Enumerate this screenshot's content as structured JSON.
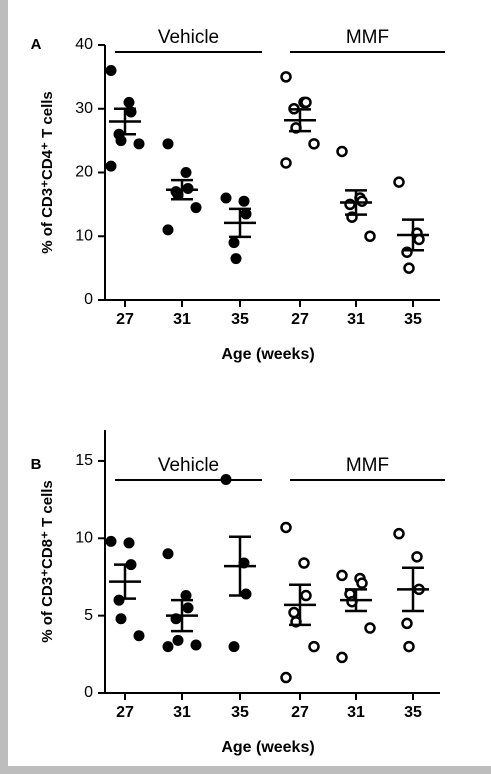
{
  "chart_data": [
    {
      "type": "dotplot",
      "panel": "A",
      "ylabel": "% of CD3⁺CD4⁺ T cells",
      "xlabel": "Age (weeks)",
      "ylim": [
        0,
        40
      ],
      "yticks": [
        0,
        10,
        20,
        30,
        40
      ],
      "series": [
        {
          "name": "Vehicle",
          "marker": "filled",
          "categories": [
            "27",
            "31",
            "35"
          ],
          "points": [
            [
              36,
              31,
              29.5,
              26,
              25,
              24.5,
              21
            ],
            [
              24.5,
              20,
              17.5,
              17,
              16.5,
              14.5,
              11
            ],
            [
              16,
              15.5,
              13.5,
              9,
              6.5
            ]
          ],
          "means": [
            28,
            17.3,
            12.1
          ],
          "sems": [
            2,
            1.5,
            2.2
          ]
        },
        {
          "name": "MMF",
          "marker": "open",
          "categories": [
            "27",
            "31",
            "35"
          ],
          "points": [
            [
              35,
              31,
              31,
              30,
              27,
              24.5,
              21.5
            ],
            [
              23.3,
              16,
              15.5,
              15,
              13,
              10
            ],
            [
              18.5,
              10.5,
              9.5,
              7.5,
              5
            ]
          ],
          "means": [
            28.2,
            15.3,
            10.2
          ],
          "sems": [
            1.7,
            1.9,
            2.4
          ]
        }
      ]
    },
    {
      "type": "dotplot",
      "panel": "B",
      "ylabel": "% of CD3⁺CD8⁺ T cells",
      "xlabel": "Age (weeks)",
      "ylim": [
        0,
        17
      ],
      "yticks": [
        0,
        5,
        10,
        15
      ],
      "series": [
        {
          "name": "Vehicle",
          "marker": "filled",
          "categories": [
            "27",
            "31",
            "35"
          ],
          "points": [
            [
              9.8,
              9.7,
              8.3,
              6,
              4.8,
              3.7
            ],
            [
              9,
              6.3,
              5.5,
              4.8,
              3.4,
              3.1,
              3
            ],
            [
              13.8,
              8.4,
              6.4,
              3
            ]
          ],
          "means": [
            7.2,
            5,
            8.2
          ],
          "sems": [
            1.1,
            1,
            1.9
          ]
        },
        {
          "name": "MMF",
          "marker": "open",
          "categories": [
            "27",
            "31",
            "35"
          ],
          "points": [
            [
              10.7,
              8.4,
              6.3,
              5.2,
              4.6,
              3,
              1
            ],
            [
              7.6,
              7.4,
              7.1,
              6.4,
              5.9,
              4.2,
              2.3
            ],
            [
              10.3,
              8.8,
              6.7,
              4.5,
              3
            ]
          ],
          "means": [
            5.7,
            6,
            6.7
          ],
          "sems": [
            1.3,
            0.7,
            1.4
          ]
        }
      ]
    }
  ]
}
